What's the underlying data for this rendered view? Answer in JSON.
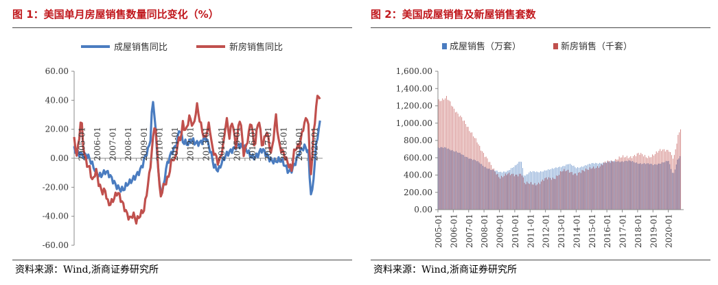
{
  "chart_data": [
    {
      "type": "line",
      "title": "图 1：美国单月房屋销售数量同比变化（%）",
      "source": "资料来源：Wind,浙商证券研究所",
      "legend_position": "top-center",
      "ylim": [
        -60,
        60
      ],
      "yticks": [
        "60.00",
        "40.00",
        "20.00",
        "0.00",
        "-20.00",
        "-40.00",
        "-60.00"
      ],
      "yticks_values": [
        60,
        40,
        20,
        0,
        -20,
        -40,
        -60
      ],
      "xticks": [
        "2005-01",
        "2006-01",
        "2007-01",
        "2008-01",
        "2009-01",
        "2010-01",
        "2011-01",
        "2012-01",
        "2013-01",
        "2014-01",
        "2015-01",
        "2016-01",
        "2017-01",
        "2018-01",
        "2019-01",
        "2020-01"
      ],
      "series": [
        {
          "name": "成屋销售同比",
          "color": "#4a7cc0",
          "anchors": [
            [
              2005.0,
              6
            ],
            [
              2005.4,
              5
            ],
            [
              2005.8,
              1
            ],
            [
              2006.2,
              -6
            ],
            [
              2006.6,
              -10
            ],
            [
              2007.0,
              -10
            ],
            [
              2007.4,
              -15
            ],
            [
              2007.8,
              -18
            ],
            [
              2008.2,
              -22
            ],
            [
              2008.6,
              -18
            ],
            [
              2009.0,
              -10
            ],
            [
              2009.4,
              -5
            ],
            [
              2009.8,
              5
            ],
            [
              2009.95,
              15
            ],
            [
              2010.0,
              30
            ],
            [
              2010.1,
              42
            ],
            [
              2010.25,
              20
            ],
            [
              2010.5,
              -18
            ],
            [
              2010.7,
              -25
            ],
            [
              2010.9,
              -10
            ],
            [
              2011.1,
              -2
            ],
            [
              2011.3,
              5
            ],
            [
              2011.6,
              12
            ],
            [
              2011.8,
              22
            ],
            [
              2012.0,
              10
            ],
            [
              2012.3,
              8
            ],
            [
              2012.6,
              14
            ],
            [
              2012.9,
              12
            ],
            [
              2013.2,
              10
            ],
            [
              2013.5,
              12
            ],
            [
              2013.8,
              5
            ],
            [
              2014.0,
              -3
            ],
            [
              2014.3,
              -8
            ],
            [
              2014.6,
              -3
            ],
            [
              2014.9,
              3
            ],
            [
              2015.2,
              8
            ],
            [
              2015.5,
              10
            ],
            [
              2015.8,
              6
            ],
            [
              2016.1,
              5
            ],
            [
              2016.4,
              3
            ],
            [
              2016.8,
              2
            ],
            [
              2017.1,
              4
            ],
            [
              2017.4,
              2
            ],
            [
              2017.8,
              0
            ],
            [
              2018.1,
              -2
            ],
            [
              2018.4,
              -4
            ],
            [
              2018.8,
              -8
            ],
            [
              2019.1,
              -5
            ],
            [
              2019.5,
              2
            ],
            [
              2019.9,
              8
            ],
            [
              2020.1,
              5
            ],
            [
              2020.2,
              -18
            ],
            [
              2020.3,
              -26
            ],
            [
              2020.45,
              -8
            ],
            [
              2020.6,
              10
            ],
            [
              2020.75,
              18
            ],
            [
              2020.9,
              26
            ]
          ]
        },
        {
          "name": "新房销售同比",
          "color": "#c0504d",
          "anchors": [
            [
              2005.0,
              14
            ],
            [
              2005.15,
              2
            ],
            [
              2005.3,
              8
            ],
            [
              2005.45,
              28
            ],
            [
              2005.6,
              5
            ],
            [
              2005.8,
              -3
            ],
            [
              2006.0,
              -5
            ],
            [
              2006.2,
              -15
            ],
            [
              2006.4,
              -8
            ],
            [
              2006.6,
              -20
            ],
            [
              2006.8,
              -25
            ],
            [
              2007.0,
              -22
            ],
            [
              2007.2,
              -30
            ],
            [
              2007.5,
              -28
            ],
            [
              2007.8,
              -25
            ],
            [
              2008.0,
              -30
            ],
            [
              2008.3,
              -35
            ],
            [
              2008.6,
              -40
            ],
            [
              2008.8,
              -38
            ],
            [
              2009.0,
              -45
            ],
            [
              2009.2,
              -42
            ],
            [
              2009.5,
              -35
            ],
            [
              2009.7,
              -20
            ],
            [
              2009.9,
              -5
            ],
            [
              2010.0,
              5
            ],
            [
              2010.2,
              25
            ],
            [
              2010.4,
              -5
            ],
            [
              2010.55,
              -30
            ],
            [
              2010.7,
              -20
            ],
            [
              2010.9,
              -15
            ],
            [
              2011.1,
              -10
            ],
            [
              2011.3,
              0
            ],
            [
              2011.5,
              -3
            ],
            [
              2011.7,
              10
            ],
            [
              2011.9,
              15
            ],
            [
              2012.0,
              25
            ],
            [
              2012.2,
              20
            ],
            [
              2012.4,
              30
            ],
            [
              2012.7,
              20
            ],
            [
              2012.9,
              35
            ],
            [
              2013.1,
              25
            ],
            [
              2013.4,
              15
            ],
            [
              2013.7,
              25
            ],
            [
              2013.9,
              5
            ],
            [
              2014.1,
              0
            ],
            [
              2014.3,
              -5
            ],
            [
              2014.6,
              10
            ],
            [
              2014.8,
              30
            ],
            [
              2015.0,
              15
            ],
            [
              2015.2,
              25
            ],
            [
              2015.4,
              5
            ],
            [
              2015.7,
              30
            ],
            [
              2015.9,
              5
            ],
            [
              2016.1,
              10
            ],
            [
              2016.4,
              25
            ],
            [
              2016.6,
              5
            ],
            [
              2016.9,
              28
            ],
            [
              2017.1,
              10
            ],
            [
              2017.4,
              20
            ],
            [
              2017.7,
              0
            ],
            [
              2018.0,
              28
            ],
            [
              2018.2,
              10
            ],
            [
              2018.5,
              5
            ],
            [
              2018.8,
              -5
            ],
            [
              2019.0,
              -10
            ],
            [
              2019.2,
              5
            ],
            [
              2019.5,
              10
            ],
            [
              2019.8,
              25
            ],
            [
              2020.0,
              28
            ],
            [
              2020.1,
              20
            ],
            [
              2020.2,
              -10
            ],
            [
              2020.3,
              -12
            ],
            [
              2020.4,
              15
            ],
            [
              2020.55,
              30
            ],
            [
              2020.7,
              48
            ],
            [
              2020.85,
              40
            ],
            [
              2020.95,
              42
            ]
          ]
        }
      ]
    },
    {
      "type": "bar",
      "title": "图 2：美国成屋销售及新屋销售套数",
      "source": "资料来源：Wind,浙商证券研究所",
      "legend_position": "top-center",
      "ylim": [
        0,
        1600
      ],
      "yticks": [
        "1,600.00",
        "1,400.00",
        "1,200.00",
        "1,000.00",
        "800.00",
        "600.00",
        "400.00",
        "200.00",
        "0.00"
      ],
      "yticks_values": [
        1600,
        1400,
        1200,
        1000,
        800,
        600,
        400,
        200,
        0
      ],
      "xticks": [
        "2005-01",
        "2006-01",
        "2007-01",
        "2008-01",
        "2009-01",
        "2010-01",
        "2011-01",
        "2012-01",
        "2013-01",
        "2014-01",
        "2015-01",
        "2016-01",
        "2017-01",
        "2018-01",
        "2019-01",
        "2020-01"
      ],
      "series": [
        {
          "name": "成屋销售（万套）",
          "color": "#4a7cc0",
          "anchors": [
            [
              2005.0,
              710
            ],
            [
              2005.5,
              720
            ],
            [
              2006.0,
              680
            ],
            [
              2006.5,
              640
            ],
            [
              2007.0,
              600
            ],
            [
              2007.5,
              560
            ],
            [
              2008.0,
              500
            ],
            [
              2008.5,
              460
            ],
            [
              2009.0,
              430
            ],
            [
              2009.5,
              450
            ],
            [
              2010.0,
              500
            ],
            [
              2010.4,
              570
            ],
            [
              2010.6,
              390
            ],
            [
              2011.0,
              440
            ],
            [
              2011.5,
              430
            ],
            [
              2012.0,
              460
            ],
            [
              2012.5,
              470
            ],
            [
              2013.0,
              500
            ],
            [
              2013.5,
              530
            ],
            [
              2014.0,
              480
            ],
            [
              2014.5,
              510
            ],
            [
              2015.0,
              530
            ],
            [
              2015.5,
              540
            ],
            [
              2016.0,
              550
            ],
            [
              2016.5,
              560
            ],
            [
              2017.0,
              560
            ],
            [
              2017.5,
              560
            ],
            [
              2018.0,
              540
            ],
            [
              2018.5,
              530
            ],
            [
              2019.0,
              520
            ],
            [
              2019.5,
              540
            ],
            [
              2020.0,
              560
            ],
            [
              2020.3,
              400
            ],
            [
              2020.6,
              590
            ],
            [
              2020.9,
              650
            ]
          ]
        },
        {
          "name": "新房销售（千套）",
          "color": "#c0504d",
          "anchors": [
            [
              2005.0,
              1270
            ],
            [
              2005.5,
              1300
            ],
            [
              2006.0,
              1150
            ],
            [
              2006.5,
              1080
            ],
            [
              2007.0,
              900
            ],
            [
              2007.5,
              800
            ],
            [
              2008.0,
              620
            ],
            [
              2008.5,
              480
            ],
            [
              2009.0,
              380
            ],
            [
              2009.5,
              400
            ],
            [
              2010.0,
              410
            ],
            [
              2010.4,
              420
            ],
            [
              2010.6,
              290
            ],
            [
              2011.0,
              300
            ],
            [
              2011.5,
              310
            ],
            [
              2012.0,
              350
            ],
            [
              2012.5,
              370
            ],
            [
              2013.0,
              440
            ],
            [
              2013.5,
              440
            ],
            [
              2014.0,
              420
            ],
            [
              2014.5,
              440
            ],
            [
              2015.0,
              500
            ],
            [
              2015.5,
              490
            ],
            [
              2016.0,
              560
            ],
            [
              2016.5,
              580
            ],
            [
              2017.0,
              600
            ],
            [
              2017.5,
              620
            ],
            [
              2018.0,
              640
            ],
            [
              2018.5,
              610
            ],
            [
              2019.0,
              640
            ],
            [
              2019.5,
              680
            ],
            [
              2020.0,
              700
            ],
            [
              2020.3,
              590
            ],
            [
              2020.6,
              850
            ],
            [
              2020.9,
              1000
            ]
          ]
        }
      ]
    }
  ]
}
